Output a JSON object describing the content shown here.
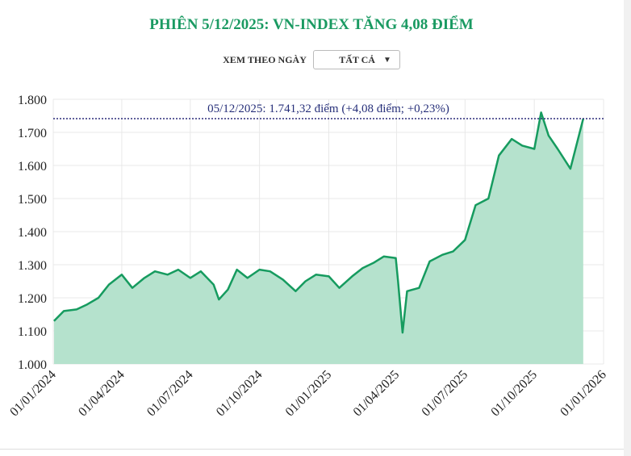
{
  "title": "PHIÊN 5/12/2025: VN-INDEX TĂNG 4,08 ĐIỂM",
  "filter": {
    "label": "XEM THEO NGÀY",
    "selected": "TẤT CẢ"
  },
  "colors": {
    "title": "#1a9a62",
    "line": "#169b5f",
    "area": "#b5e2cd",
    "reference": "#2b2b7a",
    "annotation": "#27307a"
  },
  "chart_data": {
    "type": "area",
    "title": "",
    "xlabel": "",
    "ylabel": "",
    "ylim": [
      1000,
      1800
    ],
    "xlim": [
      "2024-01-01",
      "2026-01-01"
    ],
    "yticks": [
      "1.000",
      "1.100",
      "1.200",
      "1.300",
      "1.400",
      "1.500",
      "1.600",
      "1.700",
      "1.800"
    ],
    "yticks_values": [
      1000,
      1100,
      1200,
      1300,
      1400,
      1500,
      1600,
      1700,
      1800
    ],
    "xticks": [
      "01/01/2024",
      "01/04/2024",
      "01/07/2024",
      "01/10/2024",
      "01/01/2025",
      "01/04/2025",
      "01/07/2025",
      "01/10/2025",
      "01/01/2026"
    ],
    "xticks_values": [
      "2024-01-01",
      "2024-04-01",
      "2024-07-01",
      "2024-10-01",
      "2025-01-01",
      "2025-04-01",
      "2025-07-01",
      "2025-10-01",
      "2026-01-01"
    ],
    "grid": true,
    "reference_line": {
      "value": 1741.32,
      "label": "05/12/2025: 1.741,32 điểm (+4,08 điểm; +0,23%)"
    },
    "series": [
      {
        "x": [
          "2024-01-02",
          "2024-01-15",
          "2024-02-01",
          "2024-02-15",
          "2024-03-01",
          "2024-03-15",
          "2024-04-01",
          "2024-04-15",
          "2024-05-01",
          "2024-05-15",
          "2024-06-01",
          "2024-06-15",
          "2024-07-01",
          "2024-07-15",
          "2024-08-01",
          "2024-08-08",
          "2024-08-20",
          "2024-09-01",
          "2024-09-15",
          "2024-10-01",
          "2024-10-15",
          "2024-11-01",
          "2024-11-18",
          "2024-12-01",
          "2024-12-15",
          "2025-01-01",
          "2025-01-15",
          "2025-02-01",
          "2025-02-15",
          "2025-03-01",
          "2025-03-15",
          "2025-03-31",
          "2025-04-03",
          "2025-04-09",
          "2025-04-15",
          "2025-05-01",
          "2025-05-15",
          "2025-06-01",
          "2025-06-15",
          "2025-07-01",
          "2025-07-15",
          "2025-08-01",
          "2025-08-15",
          "2025-09-01",
          "2025-09-15",
          "2025-10-01",
          "2025-10-10",
          "2025-10-20",
          "2025-11-01",
          "2025-11-18",
          "2025-12-05"
        ],
        "values": [
          1130,
          1160,
          1165,
          1180,
          1200,
          1240,
          1270,
          1230,
          1260,
          1280,
          1270,
          1285,
          1260,
          1280,
          1240,
          1195,
          1225,
          1285,
          1260,
          1285,
          1280,
          1255,
          1220,
          1250,
          1270,
          1265,
          1230,
          1265,
          1290,
          1305,
          1325,
          1320,
          1250,
          1095,
          1220,
          1230,
          1310,
          1330,
          1340,
          1375,
          1480,
          1500,
          1630,
          1680,
          1660,
          1650,
          1760,
          1690,
          1650,
          1590,
          1741.32
        ]
      }
    ]
  }
}
